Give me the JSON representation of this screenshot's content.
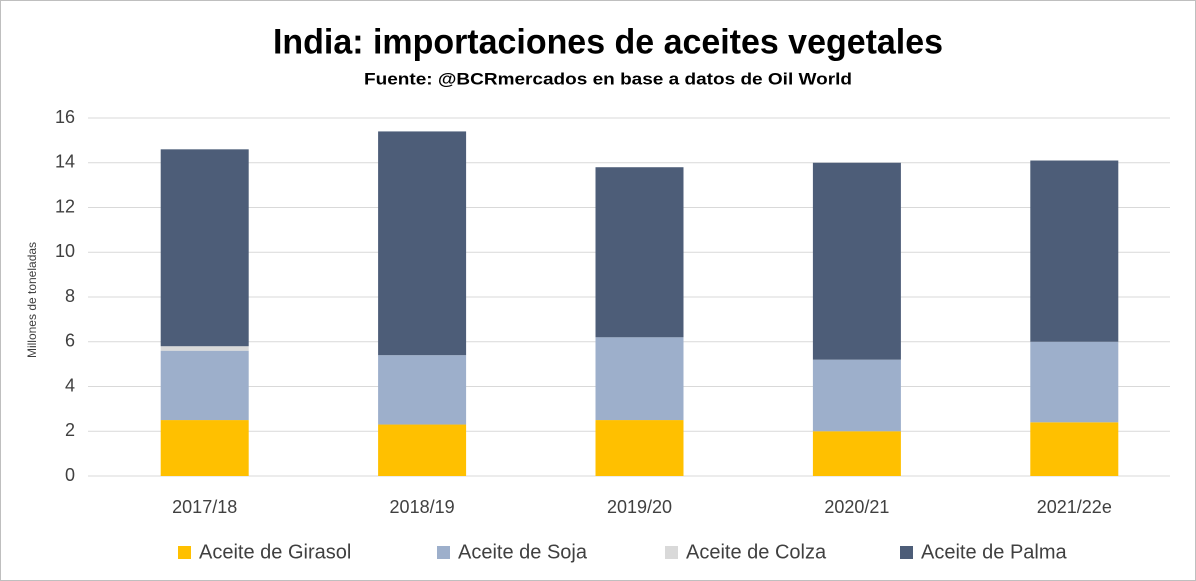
{
  "chart_data": {
    "type": "stacked_bar",
    "title": "India: importaciones de aceites vegetales",
    "subtitle": "Fuente: @BCRmercados en base a datos de Oil World",
    "y_label": "Millones de toneladas",
    "categories": [
      "2017/18",
      "2018/19",
      "2019/20",
      "2020/21",
      "2021/22e"
    ],
    "series": [
      {
        "name": "Aceite de Girasol",
        "color": "#ffc000",
        "values": [
          2.5,
          2.3,
          2.5,
          2.0,
          2.4
        ]
      },
      {
        "name": "Aceite de Soja",
        "color": "#9dafcb",
        "values": [
          3.1,
          3.1,
          3.7,
          3.2,
          3.6
        ]
      },
      {
        "name": "Aceite de Colza",
        "color": "#d9d9d9",
        "values": [
          0.2,
          0,
          0,
          0,
          0
        ]
      },
      {
        "name": "Aceite de Palma",
        "color": "#4d5d78",
        "values": [
          8.8,
          10.0,
          7.6,
          8.8,
          8.1
        ]
      }
    ],
    "ylim": [
      0,
      16
    ],
    "yticks": [
      0,
      2,
      4,
      6,
      8,
      10,
      12,
      14,
      16
    ],
    "grid": true,
    "legend": "bottom"
  }
}
